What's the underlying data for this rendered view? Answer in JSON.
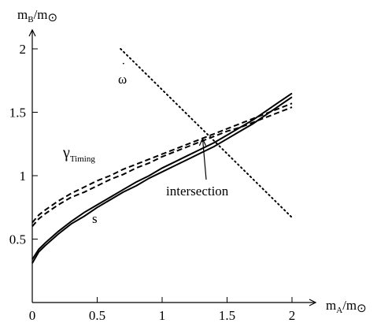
{
  "chart_data": {
    "type": "line",
    "title": "",
    "xlabel": {
      "main": "m",
      "sub": "A",
      "sep": "/m",
      "sun": "⊙"
    },
    "ylabel": {
      "main": "m",
      "sub": "B",
      "sep": "/m",
      "sun": "⊙"
    },
    "xlim": [
      0,
      2.1
    ],
    "ylim": [
      0,
      2.3
    ],
    "xticks": [
      0,
      0.5,
      1,
      1.5,
      2
    ],
    "xtick_labels": [
      "0",
      "0.5",
      "1",
      "1.5",
      "2"
    ],
    "yticks": [
      0.5,
      1,
      1.5,
      2
    ],
    "ytick_labels": [
      "0.5",
      "1",
      "1.5",
      "2"
    ],
    "grid": false,
    "series": [
      {
        "name": "s",
        "style": "solid-double",
        "x": [
          0,
          0.05,
          0.1,
          0.2,
          0.3,
          0.4,
          0.5,
          0.6,
          0.7,
          0.8,
          0.9,
          1.0,
          1.1,
          1.2,
          1.3,
          1.4,
          1.5,
          1.6,
          1.7,
          1.8,
          1.9,
          2.0
        ],
        "y_lower": [
          0.31,
          0.4,
          0.45,
          0.54,
          0.62,
          0.68,
          0.75,
          0.81,
          0.87,
          0.92,
          0.98,
          1.03,
          1.08,
          1.13,
          1.18,
          1.23,
          1.29,
          1.35,
          1.41,
          1.48,
          1.55,
          1.62
        ],
        "y_upper": [
          0.34,
          0.42,
          0.47,
          0.56,
          0.64,
          0.71,
          0.77,
          0.83,
          0.89,
          0.95,
          1.0,
          1.06,
          1.11,
          1.16,
          1.21,
          1.26,
          1.32,
          1.38,
          1.44,
          1.51,
          1.58,
          1.65
        ]
      },
      {
        "name": "γ",
        "name_sub": "Timing",
        "style": "dashed-double",
        "x": [
          0,
          0.05,
          0.1,
          0.2,
          0.3,
          0.4,
          0.5,
          0.6,
          0.7,
          0.8,
          0.9,
          1.0,
          1.1,
          1.2,
          1.3,
          1.4,
          1.5,
          1.6,
          1.7,
          1.8,
          1.9,
          2.0
        ],
        "y_lower": [
          0.6,
          0.66,
          0.7,
          0.77,
          0.83,
          0.87,
          0.92,
          0.97,
          1.01,
          1.06,
          1.1,
          1.15,
          1.19,
          1.23,
          1.27,
          1.31,
          1.35,
          1.38,
          1.42,
          1.46,
          1.5,
          1.54
        ],
        "y_upper": [
          0.63,
          0.69,
          0.73,
          0.8,
          0.86,
          0.91,
          0.96,
          1.0,
          1.05,
          1.09,
          1.13,
          1.17,
          1.21,
          1.25,
          1.29,
          1.33,
          1.37,
          1.41,
          1.45,
          1.49,
          1.53,
          1.57
        ]
      },
      {
        "name": "ω",
        "name_accent": "˙",
        "style": "dotted",
        "x": [
          0.68,
          2.0
        ],
        "y": [
          2.0,
          0.67
        ]
      }
    ],
    "annotations": [
      {
        "text": "intersection",
        "points_to": [
          1.33,
          1.33
        ]
      }
    ]
  }
}
